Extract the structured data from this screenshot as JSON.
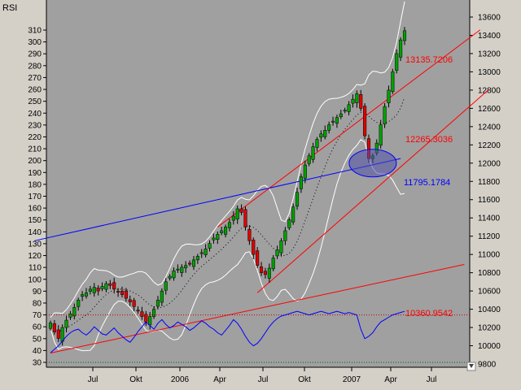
{
  "chart_data": {
    "type": "candlestick",
    "indicator_label": "RSI",
    "x_tick_labels": [
      "Jul",
      "Okt",
      "2006",
      "Apr",
      "Jul",
      "Okt",
      "2007",
      "Apr",
      "Jul"
    ],
    "left_axis": {
      "name": "RSI",
      "ticks": [
        30,
        40,
        50,
        60,
        70,
        80,
        90,
        100,
        110,
        120,
        130,
        140,
        150,
        160,
        170,
        180,
        190,
        200,
        210,
        220,
        230,
        240,
        250,
        260,
        270,
        280,
        290,
        300,
        310
      ]
    },
    "right_axis": {
      "ticks": [
        9800,
        10000,
        10200,
        10400,
        10600,
        10800,
        11000,
        11200,
        11400,
        11600,
        11800,
        12000,
        12200,
        12400,
        12600,
        12800,
        13000,
        13200,
        13400,
        13600
      ],
      "ylim": [
        9800,
        13600
      ]
    },
    "annotations": [
      {
        "text": "13135.7206",
        "color": "#ff0000",
        "value": 13135.7206
      },
      {
        "text": "12265.3036",
        "color": "#ff0000",
        "value": 12265.3036
      },
      {
        "text": "11795.1784",
        "color": "#0000ff",
        "value": 11795.1784
      },
      {
        "text": "10360.9542",
        "color": "#ff0000",
        "value": 10360.9542
      }
    ],
    "price_closes": [
      10250,
      10150,
      10080,
      10200,
      10280,
      10350,
      10420,
      10500,
      10560,
      10580,
      10620,
      10640,
      10600,
      10650,
      10680,
      10660,
      10620,
      10590,
      10560,
      10520,
      10480,
      10430,
      10380,
      10320,
      10260,
      10320,
      10400,
      10500,
      10600,
      10700,
      10760,
      10820,
      10840,
      10860,
      10880,
      10900,
      10940,
      10980,
      11020,
      11060,
      11120,
      11180,
      11220,
      11260,
      11300,
      11350,
      11420,
      11500,
      11460,
      11300,
      11150,
      11000,
      10880,
      10800,
      10780,
      10850,
      10960,
      11050,
      11150,
      11260,
      11380,
      11520,
      11680,
      11850,
      11980,
      12080,
      12180,
      12260,
      12320,
      12360,
      12420,
      12460,
      12500,
      12540,
      12580,
      12640,
      12700,
      12760,
      12600,
      12300,
      12050,
      12080,
      12220,
      12420,
      12620,
      12800,
      13000,
      13200,
      13350,
      13450
    ],
    "rsi": [
      38,
      41,
      44,
      48,
      52,
      55,
      57,
      58,
      55,
      53,
      56,
      60,
      57,
      54,
      53,
      56,
      59,
      55,
      52,
      49,
      47,
      51,
      56,
      60,
      64,
      61,
      58,
      63,
      66,
      62,
      59,
      61,
      64,
      62,
      60,
      57,
      59,
      62,
      65,
      63,
      60,
      58,
      55,
      53,
      57,
      61,
      66,
      63,
      58,
      52,
      47,
      44,
      46,
      50,
      55,
      60,
      64,
      67,
      69,
      70,
      71,
      72,
      73,
      72,
      71,
      70,
      71,
      72,
      73,
      72,
      71,
      72,
      73,
      72,
      71,
      72,
      71,
      70,
      58,
      50,
      52,
      55,
      60,
      64,
      66,
      68,
      70,
      71,
      72,
      73
    ],
    "rsi_levels": [
      30,
      70
    ],
    "trendlines": [
      {
        "color": "#ff0000"
      },
      {
        "color": "#ff0000"
      },
      {
        "color": "#ff0000"
      },
      {
        "color": "#0000ff"
      }
    ],
    "highlight": {
      "shape": "ellipse",
      "color": "#0000ff"
    }
  },
  "colors": {
    "plot_bg": "#a0a0a0",
    "up_candle": "#00a000",
    "down_candle": "#e00000",
    "band": "#ffffff",
    "rsi_line": "#0000ff"
  }
}
